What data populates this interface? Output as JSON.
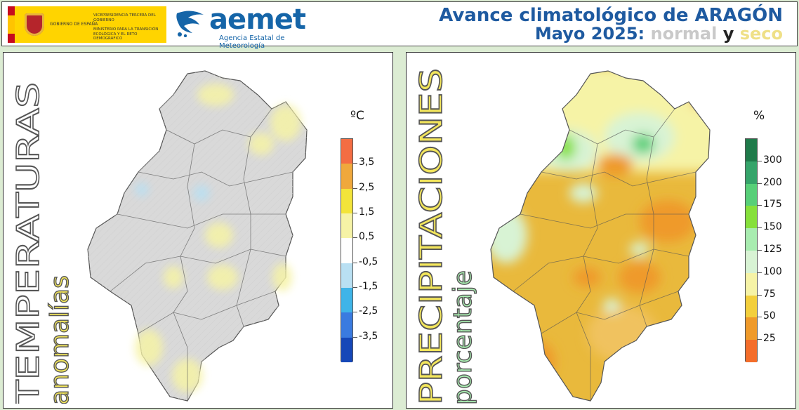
{
  "header": {
    "gov_name": "GOBIERNO DE ESPAÑA",
    "vice_text": "VICEPRESIDENCIA TERCERA DEL GOBIERNO",
    "ministry_text": "MINISTERIO PARA LA TRANSICIÓN ECOLÓGICA Y EL RETO DEMOGRÁFICO",
    "aemet_word": "aemet",
    "aemet_sub": "Agencia Estatal de Meteorología",
    "title_prefix": "Avance climatológico de ",
    "title_region": "ARAGÓN",
    "title_period": "Mayo 2025: ",
    "title_normal": "normal",
    "title_y": "y",
    "title_seco": "seco"
  },
  "temperature": {
    "title": "TEMPERATURAS",
    "subtitle": "anomalías",
    "unit": "ºC",
    "legend_labels": [
      "3,5",
      "2,5",
      "1,5",
      "0,5",
      "-0,5",
      "-1,5",
      "-2,5",
      "-3,5"
    ],
    "legend_colors": [
      "#f46d43",
      "#f0a83c",
      "#f3e43a",
      "#f6f3a6",
      "#ffffff",
      "#b9e0f3",
      "#3fb4e8",
      "#3a7be0",
      "#1547b8"
    ],
    "title_color": "#ffffff",
    "subtitle_color": "#f3e65c"
  },
  "precipitation": {
    "title": "PRECIPITACIONES",
    "subtitle": "porcentaje",
    "unit": "%",
    "legend_labels": [
      "300",
      "200",
      "175",
      "150",
      "125",
      "100",
      "75",
      "50",
      "25"
    ],
    "legend_colors": [
      "#1f7a4a",
      "#35a46a",
      "#57cf78",
      "#86e03b",
      "#a8ecb0",
      "#d8f3d4",
      "#f6f3a6",
      "#f3cf3c",
      "#ef9a2a",
      "#f46d2a"
    ],
    "title_color": "#f3e65c",
    "subtitle_color": "#a8ecb0"
  }
}
